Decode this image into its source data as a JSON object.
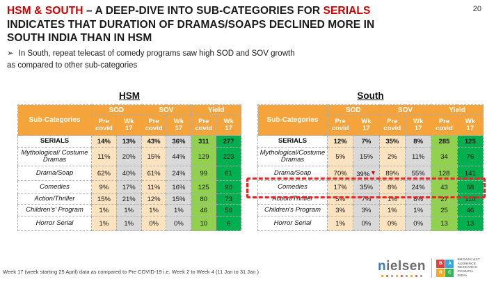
{
  "page_number": "20",
  "title": {
    "lines": [
      [
        {
          "text": "HSM & SOUTH",
          "red": true
        },
        {
          "text": " – A DEEP-DIVE INTO SUB-CATEGORIES FOR ",
          "red": false
        },
        {
          "text": "SERIALS",
          "red": true
        }
      ],
      [
        {
          "text": "INDICATES THAT DURATION OF DRAMAS/SOAPS DECLINED MORE IN",
          "red": false
        }
      ],
      [
        {
          "text": "SOUTH INDIA THAN IN HSM",
          "red": false
        }
      ]
    ]
  },
  "bullet": {
    "marker": "➢",
    "lines": [
      "In South, repeat telecast of comedy programs saw high SOD and SOV growth",
      "as compared to other sub-categories"
    ]
  },
  "tables": {
    "hsm": {
      "caption": "HSM",
      "first_col_header": "Sub-Categories",
      "col_groups": [
        "SOD",
        "SOV",
        "Yield"
      ],
      "sub_headers": [
        [
          "Pre",
          "covid"
        ],
        [
          "Wk",
          "17"
        ]
      ],
      "rows": [
        {
          "label": "SERIALS",
          "style": "bold",
          "values": [
            "14%",
            "13%",
            "43%",
            "36%",
            "311",
            "277"
          ]
        },
        {
          "label": "Mythological/ Costume Dramas",
          "style": "italic",
          "values": [
            "11%",
            "20%",
            "15%",
            "44%",
            "129",
            "223"
          ]
        },
        {
          "label": "Drama/Soap",
          "style": "italic",
          "values": [
            "62%",
            "40%",
            "61%",
            "24%",
            "99",
            "61"
          ]
        },
        {
          "label": "Comedies",
          "style": "italic",
          "values": [
            "9%",
            "17%",
            "11%",
            "16%",
            "125",
            "90"
          ]
        },
        {
          "label": "Action/Thriller",
          "style": "italic",
          "values": [
            "15%",
            "21%",
            "12%",
            "15%",
            "80",
            "73"
          ]
        },
        {
          "label": "Children's' Program",
          "style": "italic",
          "values": [
            "1%",
            "1%",
            "1%",
            "1%",
            "46",
            "56"
          ]
        },
        {
          "label": "Horror Serial",
          "style": "italic",
          "values": [
            "1%",
            "1%",
            "0%",
            "0%",
            "10",
            "6"
          ]
        }
      ]
    },
    "south": {
      "caption": "South",
      "first_col_header": "Sub-Categories",
      "col_groups": [
        "SOD",
        "SOV",
        "Yield"
      ],
      "sub_headers": [
        [
          "Pre",
          "covid"
        ],
        [
          "Wk",
          "17"
        ]
      ],
      "rows": [
        {
          "label": "SERIALS",
          "style": "bold",
          "values": [
            "12%",
            "7%",
            "35%",
            "8%",
            "285",
            "125"
          ]
        },
        {
          "label": "Mythological/Costume Dramas",
          "style": "italic",
          "values": [
            "5%",
            "15%",
            "2%",
            "11%",
            "34",
            "76"
          ]
        },
        {
          "label": "Drama/Soap",
          "style": "italic",
          "values": [
            "70%",
            "39%",
            "89%",
            "55%",
            "128",
            "141"
          ],
          "arrow_after_col": 1
        },
        {
          "label": "Comedies",
          "style": "italic",
          "highlighted": true,
          "values": [
            "17%",
            "35%",
            "8%",
            "24%",
            "43",
            "68"
          ]
        },
        {
          "label": "Action/Thriller",
          "style": "italic",
          "values": [
            "5%",
            "7%",
            "1%",
            "8%",
            "27",
            "110"
          ]
        },
        {
          "label": "Children's Program",
          "style": "italic",
          "values": [
            "3%",
            "3%",
            "1%",
            "1%",
            "25",
            "46"
          ]
        },
        {
          "label": "Horror Serial",
          "style": "italic",
          "values": [
            "1%",
            "0%",
            "0%",
            "0%",
            "13",
            "13"
          ]
        }
      ]
    }
  },
  "annotations": {
    "drop_arrow_glyph": "▼"
  },
  "footer": {
    "note": "Week 17 (week starting 25 April) data as compared to Pre COVID-19 i.e. Week 2 to Week 4 (11 Jan to 31 Jan )"
  },
  "logos": {
    "nielsen_word": "nielsen",
    "barc_letters": [
      "B",
      "A",
      "R",
      "C"
    ],
    "barc_text_lines": [
      "BROADCAST",
      "AUDIENCE",
      "RESEARCH",
      "COUNCIL",
      "INDIA"
    ]
  },
  "colors": {
    "accent_orange": "#F5A43C",
    "cell_wheat": "#FBE3C0",
    "cell_gray": "#D9D9D9",
    "cell_green_light": "#92D050",
    "cell_green_dark": "#00B050",
    "title_red": "#CC0000",
    "highlight_red": "#EE2222",
    "barc_b_red": "#E23E3E",
    "barc_a_blue": "#35A8E0",
    "barc_r_orange": "#F7A823",
    "barc_c_green": "#35B558",
    "nielsen_gray": "#6d6e71",
    "nielsen_blue": "#3A7DBF",
    "nielsen_dot_colors": [
      "#F5A623",
      "#E8554D",
      "#9B9DA0"
    ]
  }
}
